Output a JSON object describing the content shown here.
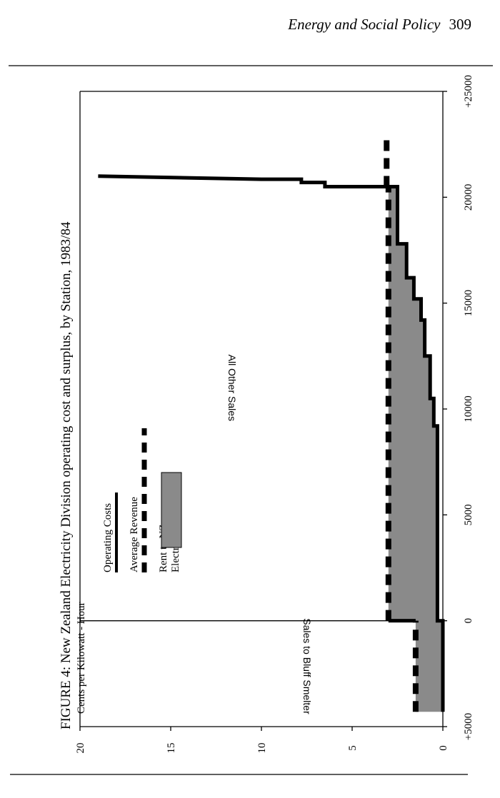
{
  "header": {
    "running_head": "Energy and Social Policy",
    "page_number": "309"
  },
  "colors": {
    "ink": "#000000",
    "rent_fill": "#8a8a8a"
  },
  "chart_data": {
    "type": "area",
    "title": "FIGURE 4: New Zealand Electricity Division operating cost and surplus, by Station, 1983/84",
    "ylabel": "Cents per Kilowatt - Hour",
    "xlim": [
      -5000,
      25000
    ],
    "ylim": [
      0,
      20
    ],
    "x_ticks": [
      -5000,
      0,
      5000,
      10000,
      15000,
      20000,
      25000
    ],
    "x_tick_labels": [
      "+5000",
      "0",
      "5000",
      "10000",
      "15000",
      "20000",
      "+25000"
    ],
    "y_ticks": [
      0,
      5,
      10,
      15,
      20
    ],
    "y_tick_labels": [
      "0",
      "5",
      "10",
      "15",
      "20"
    ],
    "legend": [
      "Operating Costs",
      "Average Revenue",
      "Rent to NZ Electricity, Division"
    ],
    "regions": [
      {
        "label": "Sales to Bluff Smelter",
        "x_range": [
          -4300,
          0
        ]
      },
      {
        "label": "All Other Sales",
        "x_range": [
          0,
          25000
        ]
      }
    ],
    "divider_x": 0,
    "series": [
      {
        "name": "Operating Costs",
        "style": "solid",
        "x": [
          -4300,
          0,
          0,
          9200,
          9200,
          10500,
          10500,
          12500,
          12500,
          14200,
          14200,
          15200,
          15200,
          16200,
          16200,
          17800,
          17800,
          20500,
          20500,
          20700,
          20700,
          20850,
          20850,
          21000
        ],
        "y": [
          0,
          0,
          0.3,
          0.3,
          0.5,
          0.5,
          0.7,
          0.7,
          1.0,
          1.0,
          1.2,
          1.2,
          1.6,
          1.6,
          2.0,
          2.0,
          2.5,
          2.5,
          6.5,
          6.5,
          7.8,
          7.8,
          10.0,
          19.0
        ]
      },
      {
        "name": "Average Revenue",
        "style": "dashed",
        "segments": [
          {
            "x": [
              -4300,
              0
            ],
            "y": [
              1.5,
              1.5
            ]
          },
          {
            "x": [
              0,
              20500
            ],
            "y": [
              3.0,
              3.0
            ]
          },
          {
            "x": [
              20500,
              22800
            ],
            "y": [
              3.1,
              3.1
            ]
          }
        ]
      }
    ]
  }
}
